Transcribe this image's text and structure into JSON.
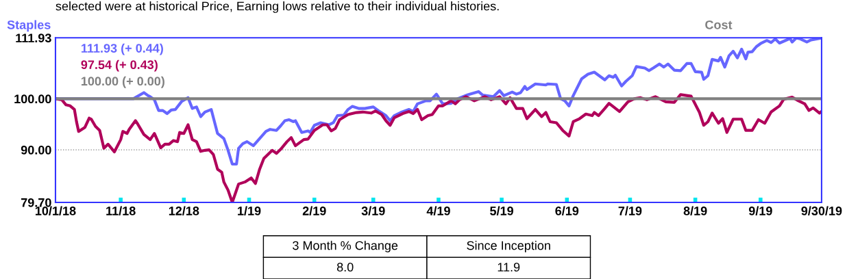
{
  "chart_data": {
    "type": "line",
    "title": "selected were at historical Price, Earning lows relative to their individual histories.",
    "series": [
      {
        "name": "Staples",
        "color": "#6666ff",
        "x": [
          "2018-10-01",
          "2018-11-07",
          "2018-11-12",
          "2018-11-14",
          "2018-11-15",
          "2018-11-17",
          "2018-11-19",
          "2018-11-21",
          "2018-11-23",
          "2018-11-25",
          "2018-11-27",
          "2018-11-30",
          "2018-12-03",
          "2018-12-05",
          "2018-12-07",
          "2018-12-09",
          "2018-12-11",
          "2018-12-14",
          "2018-12-17",
          "2018-12-20",
          "2018-12-22",
          "2018-12-24",
          "2018-12-26",
          "2018-12-27",
          "2018-12-29",
          "2018-12-31",
          "2019-01-03",
          "2019-01-06",
          "2019-01-09",
          "2019-01-11",
          "2019-01-14",
          "2019-01-16",
          "2019-01-18",
          "2019-01-20",
          "2019-01-22",
          "2019-01-23",
          "2019-01-26",
          "2019-01-29",
          "2019-01-30",
          "2019-02-01",
          "2019-02-04",
          "2019-02-08",
          "2019-02-10",
          "2019-02-12",
          "2019-02-15",
          "2019-02-17",
          "2019-02-19",
          "2019-02-22",
          "2019-02-25",
          "2019-03-01",
          "2019-03-04",
          "2019-03-07",
          "2019-03-09",
          "2019-03-11",
          "2019-03-14",
          "2019-03-18",
          "2019-03-20",
          "2019-03-22",
          "2019-03-26",
          "2019-03-28",
          "2019-03-31",
          "2019-04-03",
          "2019-04-07",
          "2019-04-10",
          "2019-04-15",
          "2019-04-20",
          "2019-04-22",
          "2019-04-27",
          "2019-04-30",
          "2019-05-02",
          "2019-05-06",
          "2019-05-08",
          "2019-05-10",
          "2019-05-12",
          "2019-05-13",
          "2019-05-17",
          "2019-05-22",
          "2019-05-23",
          "2019-05-27",
          "2019-05-29",
          "2019-05-31",
          "2019-06-02",
          "2019-06-04",
          "2019-06-08",
          "2019-06-11",
          "2019-06-14",
          "2019-06-19",
          "2019-06-21",
          "2019-06-23",
          "2019-06-24",
          "2019-06-27",
          "2019-06-29",
          "2019-07-02",
          "2019-07-04",
          "2019-07-08",
          "2019-07-10",
          "2019-07-12",
          "2019-07-15",
          "2019-07-17",
          "2019-07-19",
          "2019-07-22",
          "2019-07-25",
          "2019-07-28",
          "2019-07-30",
          "2019-08-01",
          "2019-08-04",
          "2019-08-05",
          "2019-08-07",
          "2019-08-09",
          "2019-08-12",
          "2019-08-13",
          "2019-08-15",
          "2019-08-17",
          "2019-08-19",
          "2019-08-21",
          "2019-08-23",
          "2019-08-25",
          "2019-08-26",
          "2019-08-28",
          "2019-08-30",
          "2019-09-01",
          "2019-09-04",
          "2019-09-06",
          "2019-09-08",
          "2019-09-10",
          "2019-09-15",
          "2019-09-16",
          "2019-09-18",
          "2019-09-20",
          "2019-09-23",
          "2019-09-25",
          "2019-09-29",
          "2019-09-30"
        ],
        "values": [
          100,
          100,
          101.2,
          100.6,
          100.4,
          99.8,
          97.7,
          97.7,
          97.1,
          97.8,
          97.9,
          99.5,
          100.2,
          98.1,
          98.4,
          96.5,
          97.4,
          97.9,
          93.2,
          92.2,
          89.9,
          87.2,
          87.2,
          90.3,
          91.2,
          91.6,
          90.8,
          92.2,
          93.6,
          94.0,
          93.8,
          94.7,
          95.7,
          95.9,
          95.5,
          95.7,
          93.4,
          93.7,
          93.4,
          94.8,
          95.3,
          94.9,
          95.3,
          96.7,
          96.8,
          97.9,
          98.5,
          98.1,
          98.1,
          98.4,
          97.5,
          96.7,
          95.7,
          96.7,
          97.3,
          97.9,
          97.5,
          99.0,
          99.6,
          99.6,
          100.9,
          99.0,
          99.1,
          100.0,
          100.8,
          101.4,
          100.7,
          100.4,
          101.6,
          100.6,
          101.3,
          100.9,
          101.2,
          102.4,
          101.8,
          102.9,
          102.7,
          102.9,
          102.8,
          100.0,
          99.6,
          98.6,
          100.6,
          103.9,
          104.8,
          105.2,
          103.7,
          104.5,
          104.2,
          104.6,
          102.5,
          103.4,
          104.5,
          106.3,
          106.0,
          105.5,
          106.0,
          106.8,
          106.2,
          106.8,
          105.6,
          105.5,
          106.9,
          106.9,
          105.3,
          105.2,
          103.8,
          104.5,
          107.7,
          107.4,
          108.1,
          106.2,
          108.4,
          109.3,
          108.0,
          109.7,
          107.8,
          109.1,
          109.2,
          110.2,
          110.8,
          111.4,
          111.0,
          111.7,
          110.9,
          111.8,
          111.1,
          111.9,
          111.7,
          111.1,
          111.5,
          111.8,
          111.93
        ]
      },
      {
        "color": "#b0005a",
        "x": [
          "2018-10-01",
          "2018-10-04",
          "2018-10-06",
          "2018-10-08",
          "2018-10-10",
          "2018-10-11",
          "2018-10-12",
          "2018-10-15",
          "2018-10-17",
          "2018-10-18",
          "2018-10-20",
          "2018-10-22",
          "2018-10-24",
          "2018-10-26",
          "2018-10-29",
          "2018-11-01",
          "2018-11-02",
          "2018-11-04",
          "2018-11-05",
          "2018-11-08",
          "2018-11-09",
          "2018-11-12",
          "2018-11-15",
          "2018-11-17",
          "2018-11-20",
          "2018-11-22",
          "2018-11-24",
          "2018-11-26",
          "2018-11-28",
          "2018-11-29",
          "2018-12-01",
          "2018-12-03",
          "2018-12-05",
          "2018-12-07",
          "2018-12-09",
          "2018-12-11",
          "2018-12-13",
          "2018-12-15",
          "2018-12-17",
          "2018-12-19",
          "2018-12-20",
          "2018-12-22",
          "2018-12-24",
          "2018-12-27",
          "2018-12-30",
          "2019-01-02",
          "2019-01-04",
          "2019-01-06",
          "2019-01-08",
          "2019-01-12",
          "2019-01-14",
          "2019-01-16",
          "2019-01-19",
          "2019-01-21",
          "2019-01-23",
          "2019-01-27",
          "2019-01-29",
          "2019-02-01",
          "2019-02-05",
          "2019-02-07",
          "2019-02-09",
          "2019-02-11",
          "2019-02-13",
          "2019-02-17",
          "2019-02-21",
          "2019-02-24",
          "2019-02-28",
          "2019-03-02",
          "2019-03-05",
          "2019-03-07",
          "2019-03-09",
          "2019-03-11",
          "2019-03-15",
          "2019-03-18",
          "2019-03-20",
          "2019-03-22",
          "2019-03-24",
          "2019-03-27",
          "2019-03-29",
          "2019-04-01",
          "2019-04-03",
          "2019-04-07",
          "2019-04-09",
          "2019-04-11",
          "2019-04-14",
          "2019-04-18",
          "2019-04-23",
          "2019-04-26",
          "2019-04-30",
          "2019-05-03",
          "2019-05-05",
          "2019-05-08",
          "2019-05-11",
          "2019-05-13",
          "2019-05-17",
          "2019-05-20",
          "2019-05-22",
          "2019-05-24",
          "2019-05-27",
          "2019-05-30",
          "2019-06-02",
          "2019-06-04",
          "2019-06-07",
          "2019-06-10",
          "2019-06-13",
          "2019-06-14",
          "2019-06-16",
          "2019-06-19",
          "2019-06-21",
          "2019-06-26",
          "2019-06-30",
          "2019-07-03",
          "2019-07-06",
          "2019-07-09",
          "2019-07-13",
          "2019-07-18",
          "2019-07-22",
          "2019-07-25",
          "2019-07-30",
          "2019-08-03",
          "2019-08-05",
          "2019-08-07",
          "2019-08-09",
          "2019-08-12",
          "2019-08-14",
          "2019-08-16",
          "2019-08-19",
          "2019-08-23",
          "2019-08-25",
          "2019-08-28",
          "2019-08-31",
          "2019-09-03",
          "2019-09-06",
          "2019-09-10",
          "2019-09-12",
          "2019-09-16",
          "2019-09-19",
          "2019-09-22",
          "2019-09-24",
          "2019-09-26",
          "2019-09-29",
          "2019-09-30"
        ],
        "values": [
          100,
          99.8,
          98.8,
          98.6,
          97.9,
          95.5,
          93.6,
          94.4,
          96.2,
          96.0,
          94.6,
          93.8,
          90.3,
          91.1,
          89.6,
          92.0,
          93.6,
          93.2,
          94.0,
          95.7,
          95.1,
          93.0,
          92.0,
          93.2,
          90.4,
          91.1,
          91.1,
          91.8,
          91.6,
          93.4,
          93.2,
          94.9,
          92.0,
          91.6,
          89.7,
          89.9,
          90.0,
          89.1,
          86.2,
          85.6,
          83.7,
          82.1,
          79.7,
          83.3,
          83.7,
          84.5,
          83.4,
          86.2,
          88.3,
          89.9,
          89.3,
          90.1,
          91.6,
          92.4,
          90.8,
          92.0,
          92.1,
          93.8,
          94.9,
          94.9,
          93.7,
          94.2,
          95.9,
          96.9,
          97.3,
          97.4,
          97.2,
          97.6,
          96.9,
          95.7,
          94.8,
          96.3,
          97.1,
          97.5,
          97.1,
          97.9,
          95.9,
          96.7,
          96.9,
          98.6,
          98.6,
          99.6,
          99.0,
          99.8,
          100.4,
          99.6,
          100.4,
          99.8,
          100.4,
          99.0,
          100.2,
          98.1,
          98.1,
          96.1,
          97.9,
          96.5,
          97.3,
          95.5,
          95.3,
          93.8,
          92.7,
          95.5,
          96.1,
          97.0,
          96.7,
          97.3,
          96.7,
          98.1,
          99.1,
          97.5,
          99.4,
          100.0,
          100.2,
          99.8,
          100.4,
          99.4,
          99.3,
          100.8,
          100.5,
          97.3,
          94.8,
          95.5,
          97.2,
          95.2,
          96.1,
          93.4,
          96.0,
          96.0,
          93.8,
          93.8,
          95.9,
          95.2,
          97.4,
          98.6,
          99.9,
          100.3,
          99.6,
          99.0,
          97.7,
          98.2,
          97.2,
          97.54
        ]
      },
      {
        "name": "Cost",
        "color": "#808080",
        "x": [
          "2018-10-01",
          "2019-09-30"
        ],
        "values": [
          100,
          100
        ]
      }
    ],
    "annotations": [
      "111.93 (+ 0.44)",
      "97.54 (+ 0.43)",
      "100.00 (+ 0.00)",
      "3 Month % Change",
      "Since Inception",
      "8.0",
      "11.9"
    ],
    "xlim": [
      "2018-10-01",
      "2019-09-30"
    ],
    "xticks": [
      {
        "value": "2018-10-01",
        "label": "10/1/18"
      },
      {
        "value": "2018-11-01",
        "label": "11/18"
      },
      {
        "value": "2018-12-01",
        "label": "12/18"
      },
      {
        "value": "2019-01-01",
        "label": "1/19"
      },
      {
        "value": "2019-02-01",
        "label": "2/19"
      },
      {
        "value": "2019-03-01",
        "label": "3/19"
      },
      {
        "value": "2019-04-01",
        "label": "4/19"
      },
      {
        "value": "2019-05-01",
        "label": "5/19"
      },
      {
        "value": "2019-06-01",
        "label": "6/19"
      },
      {
        "value": "2019-07-01",
        "label": "7/19"
      },
      {
        "value": "2019-08-01",
        "label": "8/19"
      },
      {
        "value": "2019-09-01",
        "label": "9/19"
      },
      {
        "value": "2019-09-30",
        "label": "9/30/19"
      }
    ],
    "ylim": [
      79.7,
      111.93
    ],
    "yticks": [
      {
        "value": 79.7,
        "label": "79.70"
      },
      {
        "value": 90,
        "label": "90.00"
      },
      {
        "value": 100,
        "label": "100.00"
      },
      {
        "value": 111.93,
        "label": "111.93"
      }
    ],
    "ref_lines": [
      {
        "axis": "y",
        "value": 90,
        "color": "#888888",
        "line_style": "dotted"
      }
    ],
    "legend": "top",
    "marker": "none",
    "line_style": "solid"
  }
}
